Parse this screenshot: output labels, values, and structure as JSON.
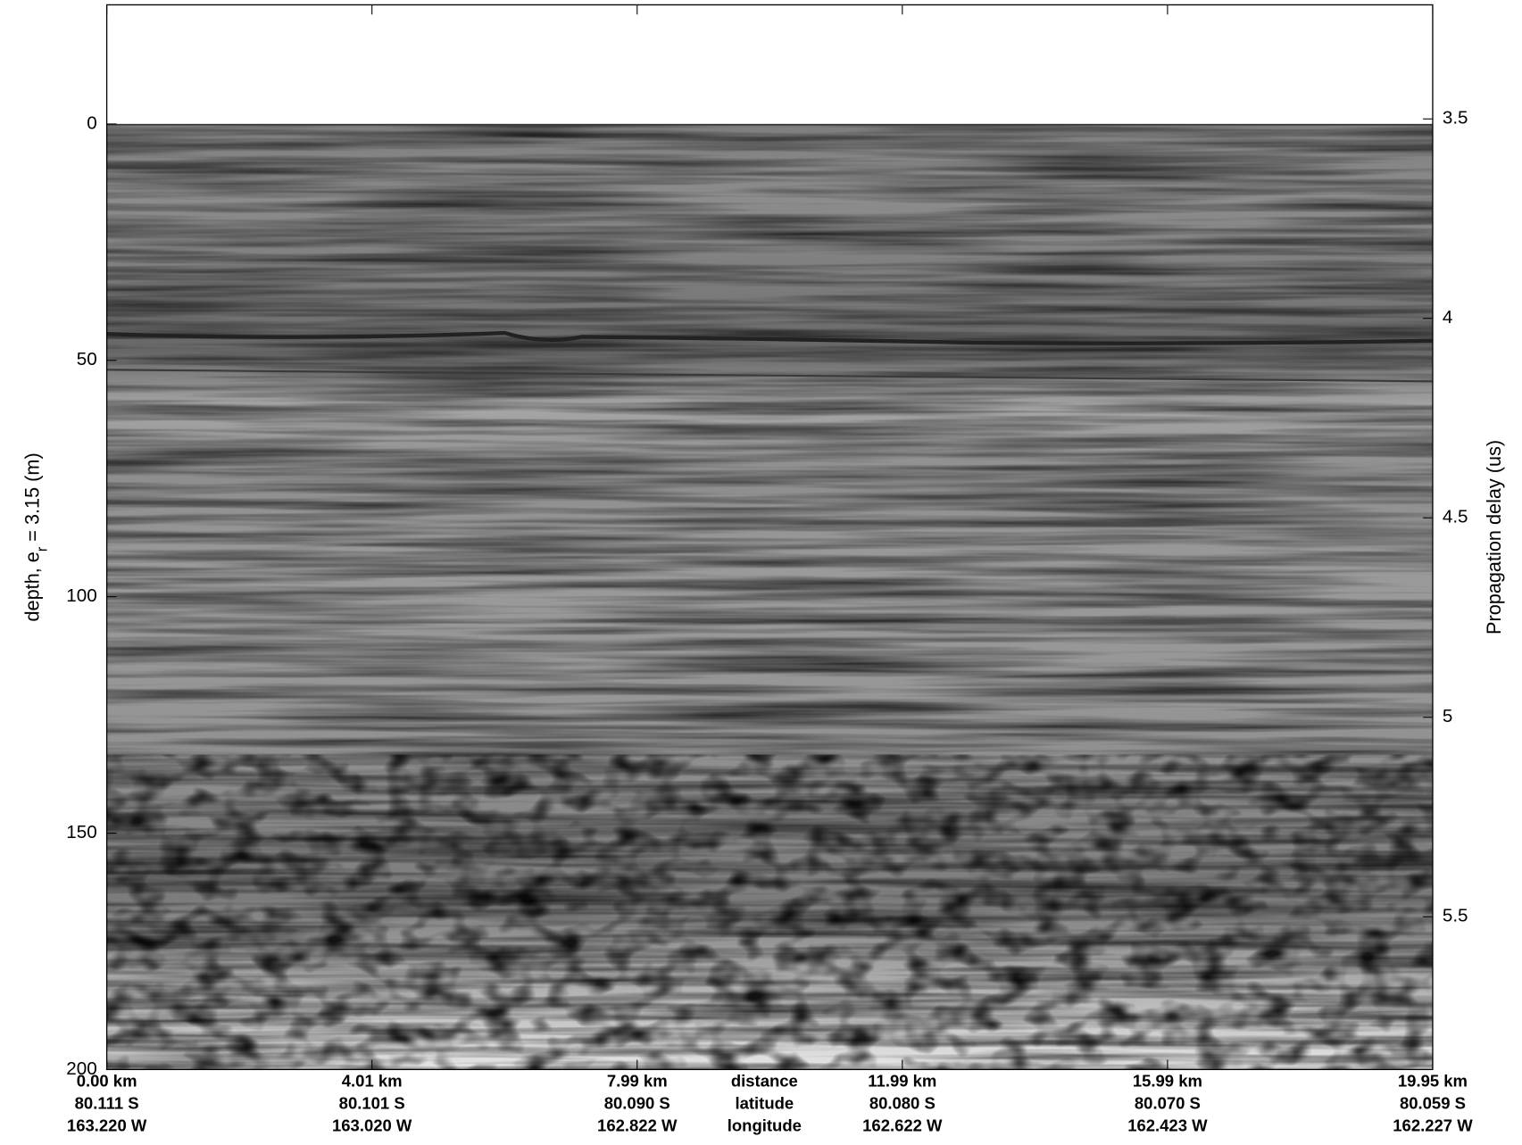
{
  "chart_data": {
    "type": "radargram",
    "ylabel": {
      "main": "depth, e",
      "sub": "r",
      "rest": " = 3.15 (m)"
    },
    "y2label": "Propagation delay (us)",
    "ylim": [
      200,
      -25.2
    ],
    "yticks": [
      0,
      50,
      100,
      150,
      200
    ],
    "y2lim": [
      5.883,
      3.214
    ],
    "y2ticks": [
      3.5,
      4,
      4.5,
      5,
      5.5
    ],
    "xticks": [
      [
        "0.00 km",
        "80.111 S",
        "163.220 W"
      ],
      [
        "4.01 km",
        "80.101 S",
        "163.020 W"
      ],
      [
        "7.99 km",
        "80.090 S",
        "162.822 W"
      ],
      [
        "11.99 km",
        "80.080 S",
        "162.622 W"
      ],
      [
        "15.99 km",
        "80.070 S",
        "162.423 W"
      ],
      [
        "19.95 km",
        "80.059 S",
        "162.227 W"
      ]
    ],
    "x_row_labels": [
      "distance",
      "latitude",
      "longitude"
    ]
  }
}
